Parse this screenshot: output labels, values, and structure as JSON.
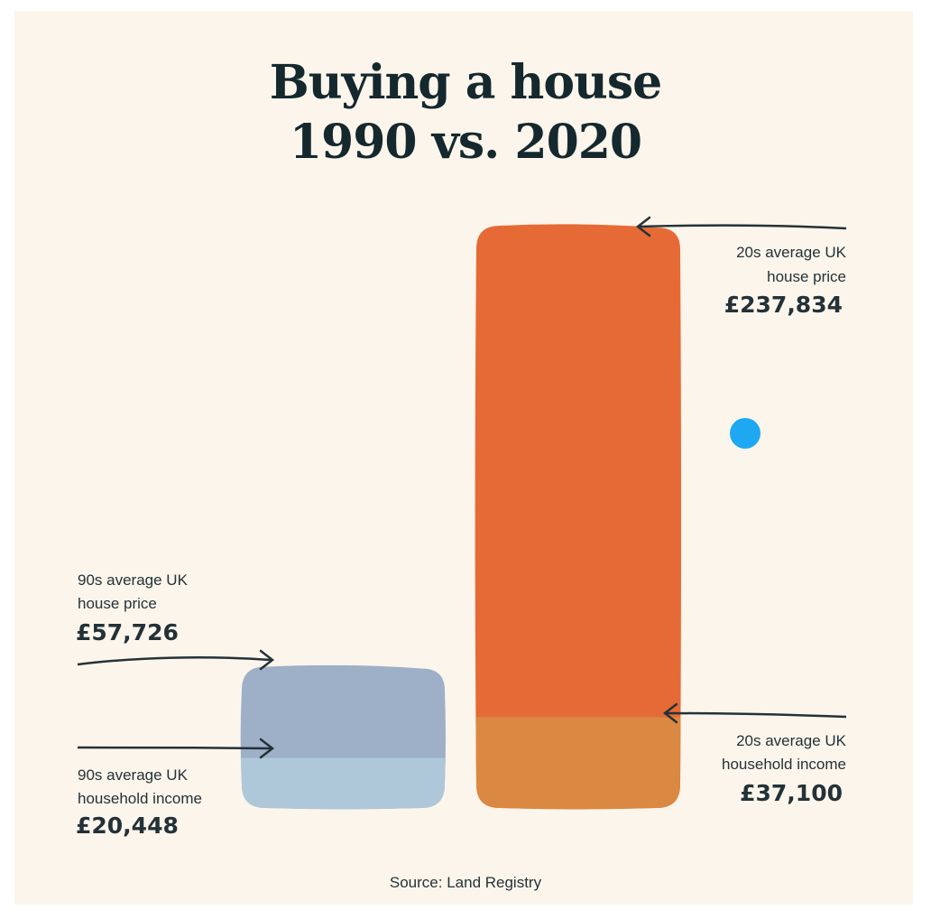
{
  "title_line1": "Buying a house",
  "title_line2": "1990 vs. 2020",
  "source": "Source: Land Registry",
  "annotations": {
    "house_1990": {
      "line1": "90s average UK",
      "line2": "house price",
      "value": "£57,726"
    },
    "income_1990": {
      "line1": "90s average UK",
      "line2": "household income",
      "value": "£20,448"
    },
    "house_2020": {
      "line1": "20s average UK",
      "line2": "house price",
      "value": "£237,834"
    },
    "income_2020": {
      "line1": "20s average UK",
      "line2": "household income",
      "value": "£37,100"
    }
  },
  "colors": {
    "background": "#fcf5eb",
    "house_1990": "#9eb0c8",
    "income_1990": "#aec8da",
    "house_2020": "#e66a35",
    "income_2020": "#da8842",
    "dot": "#1ea8f2",
    "text": "#233238"
  },
  "chart_data": {
    "type": "bar",
    "categories": [
      "1990",
      "2020"
    ],
    "series": [
      {
        "name": "average UK house price",
        "values": [
          57726,
          237834
        ]
      },
      {
        "name": "average UK household income",
        "values": [
          20448,
          37100
        ]
      }
    ]
  }
}
